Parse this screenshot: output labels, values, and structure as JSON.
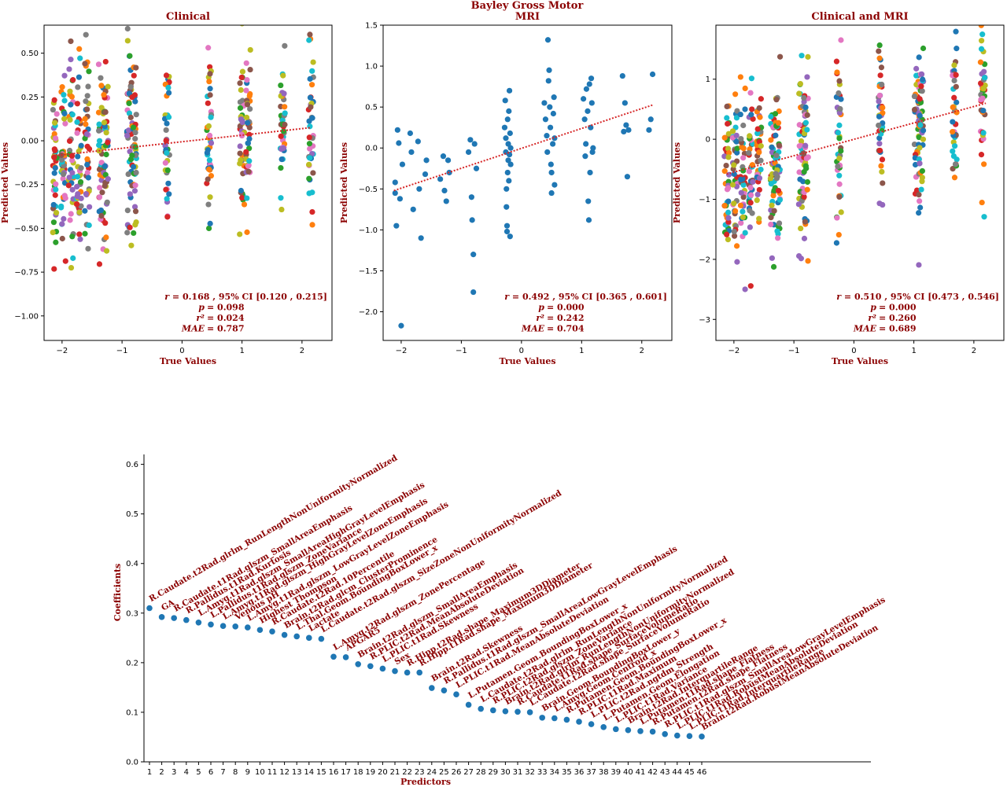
{
  "figure": {
    "suptitle_line1": "Bayley Gross Motor"
  },
  "chart_data": [
    {
      "id": "clinical",
      "type": "scatter",
      "title": "Clinical",
      "xlabel": "True Values",
      "ylabel": "Predicted Values",
      "xlim": [
        -2.3,
        2.5
      ],
      "ylim": [
        -1.14,
        0.66
      ],
      "xticks": [
        -2,
        -1,
        0,
        1,
        2
      ],
      "yticks": [
        -1.0,
        -0.75,
        -0.5,
        -0.25,
        0.0,
        0.25,
        0.5
      ],
      "ytick_labels": [
        "−1.00",
        "−0.75",
        "−0.50",
        "−0.25",
        "0.00",
        "0.25",
        "0.50"
      ],
      "xtick_labels": [
        "−2",
        "−1",
        "0",
        "1",
        "2"
      ],
      "x_groups": [
        -2.12,
        -1.98,
        -1.85,
        -1.72,
        -1.58,
        -1.35,
        -1.27,
        -0.88,
        -0.8,
        -0.25,
        0.45,
        1.0,
        1.1,
        1.68,
        2.15
      ],
      "y_center_slope": 0.04,
      "y_center_intercept": -0.02,
      "y_spread": 0.26,
      "multicolor": true,
      "fit_line": {
        "x": [
          -2.12,
          2.15
        ],
        "y": [
          -0.085,
          0.075
        ]
      },
      "stats": {
        "r_label": "r",
        "r": "= 0.168 , 95% CI [0.120 , 0.215]",
        "p_label": "p",
        "p": "= 0.098",
        "r2_label": "r²",
        "r2": "= 0.024",
        "mae_label": "MAE",
        "mae": "= 0.787"
      }
    },
    {
      "id": "mri",
      "type": "scatter",
      "title": "MRI",
      "xlabel": "True Values",
      "ylabel": "Predicted Values",
      "xlim": [
        -2.3,
        2.5
      ],
      "ylim": [
        -2.35,
        1.5
      ],
      "xticks": [
        -2,
        -1,
        0,
        1,
        2
      ],
      "yticks": [
        -2.0,
        -1.5,
        -1.0,
        -0.5,
        0.0,
        0.5,
        1.0,
        1.5
      ],
      "ytick_labels": [
        "−2.0",
        "−1.5",
        "−1.0",
        "−0.5",
        "0.0",
        "0.5",
        "1.0",
        "1.5"
      ],
      "xtick_labels": [
        "−2",
        "−1",
        "0",
        "1",
        "2"
      ],
      "points": [
        [
          -2.1,
          -0.42
        ],
        [
          -2.1,
          -0.55
        ],
        [
          -2.08,
          -0.95
        ],
        [
          -2.06,
          0.22
        ],
        [
          -2.04,
          0.06
        ],
        [
          -2.02,
          -0.62
        ],
        [
          -2.0,
          -2.17
        ],
        [
          -1.98,
          -0.2
        ],
        [
          -1.85,
          0.18
        ],
        [
          -1.83,
          -0.05
        ],
        [
          -1.8,
          -0.75
        ],
        [
          -1.72,
          0.08
        ],
        [
          -1.7,
          -0.5
        ],
        [
          -1.67,
          -1.1
        ],
        [
          -1.6,
          -0.32
        ],
        [
          -1.58,
          -0.15
        ],
        [
          -1.35,
          -0.38
        ],
        [
          -1.3,
          -0.1
        ],
        [
          -1.28,
          -0.52
        ],
        [
          -1.25,
          -0.65
        ],
        [
          -1.22,
          -0.15
        ],
        [
          -1.2,
          -0.3
        ],
        [
          -0.88,
          -0.05
        ],
        [
          -0.85,
          0.1
        ],
        [
          -0.83,
          -0.6
        ],
        [
          -0.82,
          -0.88
        ],
        [
          -0.8,
          -1.3
        ],
        [
          -0.8,
          -1.76
        ],
        [
          -0.78,
          0.05
        ],
        [
          -0.75,
          -0.25
        ],
        [
          -0.28,
          0.25
        ],
        [
          -0.27,
          0.58
        ],
        [
          -0.26,
          -0.05
        ],
        [
          -0.26,
          0.12
        ],
        [
          -0.25,
          -0.5
        ],
        [
          -0.25,
          -0.72
        ],
        [
          -0.24,
          -0.95
        ],
        [
          -0.24,
          -1.02
        ],
        [
          -0.23,
          0.35
        ],
        [
          -0.23,
          -0.3
        ],
        [
          -0.22,
          0.05
        ],
        [
          -0.22,
          -0.15
        ],
        [
          -0.21,
          0.45
        ],
        [
          -0.21,
          -0.4
        ],
        [
          -0.2,
          0.7
        ],
        [
          -0.2,
          -0.08
        ],
        [
          -0.19,
          0.18
        ],
        [
          -0.19,
          -1.08
        ],
        [
          -0.18,
          -0.2
        ],
        [
          -0.18,
          0.0
        ],
        [
          0.38,
          0.55
        ],
        [
          0.4,
          0.35
        ],
        [
          0.42,
          0.15
        ],
        [
          0.43,
          -0.05
        ],
        [
          0.44,
          1.32
        ],
        [
          0.45,
          0.82
        ],
        [
          0.46,
          0.95
        ],
        [
          0.47,
          0.5
        ],
        [
          0.48,
          0.25
        ],
        [
          0.49,
          -0.2
        ],
        [
          0.5,
          -0.55
        ],
        [
          0.5,
          -0.3
        ],
        [
          0.52,
          0.05
        ],
        [
          0.53,
          0.42
        ],
        [
          0.54,
          0.62
        ],
        [
          0.55,
          -0.45
        ],
        [
          0.55,
          0.12
        ],
        [
          1.03,
          0.6
        ],
        [
          1.05,
          0.35
        ],
        [
          1.06,
          -0.1
        ],
        [
          1.07,
          0.05
        ],
        [
          1.08,
          0.72
        ],
        [
          1.1,
          0.45
        ],
        [
          1.11,
          -0.65
        ],
        [
          1.12,
          -0.88
        ],
        [
          1.13,
          0.78
        ],
        [
          1.14,
          -0.3
        ],
        [
          1.15,
          0.25
        ],
        [
          1.16,
          0.85
        ],
        [
          1.17,
          0.55
        ],
        [
          1.18,
          -0.05
        ],
        [
          1.19,
          0.0
        ],
        [
          1.68,
          0.88
        ],
        [
          1.7,
          0.2
        ],
        [
          1.72,
          0.55
        ],
        [
          1.74,
          0.28
        ],
        [
          1.76,
          -0.35
        ],
        [
          1.78,
          0.22
        ],
        [
          2.12,
          0.22
        ],
        [
          2.15,
          0.35
        ],
        [
          2.18,
          0.9
        ]
      ],
      "fit_line": {
        "x": [
          -2.12,
          2.2
        ],
        "y": [
          -0.52,
          0.53
        ]
      },
      "stats": {
        "r_label": "r",
        "r": "= 0.492 , 95% CI [0.365 , 0.601]",
        "p_label": "p",
        "p": "= 0.000",
        "r2_label": "r²",
        "r2": "= 0.242",
        "mae_label": "MAE",
        "mae": "= 0.704"
      }
    },
    {
      "id": "clinical-mri",
      "type": "scatter",
      "title": "Clinical and MRI",
      "xlabel": "True Values",
      "ylabel": "Predicted Values",
      "xlim": [
        -2.3,
        2.5
      ],
      "ylim": [
        -3.35,
        1.9
      ],
      "xticks": [
        -2,
        -1,
        0,
        1,
        2
      ],
      "yticks": [
        -3,
        -2,
        -1,
        0,
        1
      ],
      "ytick_labels": [
        "−3",
        "−2",
        "−1",
        "0",
        "1"
      ],
      "xtick_labels": [
        "−2",
        "−1",
        "0",
        "1",
        "2"
      ],
      "x_groups": [
        -2.12,
        -1.98,
        -1.85,
        -1.72,
        -1.58,
        -1.35,
        -1.27,
        -0.88,
        -0.8,
        -0.25,
        0.45,
        1.05,
        1.12,
        1.68,
        2.15
      ],
      "y_center_slope": 0.27,
      "y_center_intercept": 0.0,
      "y_spread": 0.72,
      "multicolor": true,
      "fit_line": {
        "x": [
          -2.12,
          2.2
        ],
        "y": [
          -0.58,
          0.6
        ]
      },
      "stats": {
        "r_label": "r",
        "r": "= 0.510 , 95% CI [0.473 , 0.546]",
        "p_label": "p",
        "p": "= 0.000",
        "r2_label": "r²",
        "r2": "= 0.260",
        "mae_label": "MAE",
        "mae": "= 0.689"
      }
    },
    {
      "id": "coefficients",
      "type": "scatter",
      "xlabel": "Predictors",
      "ylabel": "Coefficients",
      "ylim": [
        0.0,
        0.62
      ],
      "yticks": [
        0.0,
        0.1,
        0.2,
        0.3,
        0.4,
        0.5,
        0.6
      ],
      "ytick_labels": [
        "0.0",
        "0.1",
        "0.2",
        "0.3",
        "0.4",
        "0.5",
        "0.6"
      ],
      "x": [
        1,
        2,
        3,
        4,
        5,
        6,
        7,
        8,
        9,
        10,
        11,
        12,
        13,
        14,
        15,
        16,
        17,
        18,
        19,
        20,
        21,
        22,
        23,
        24,
        25,
        26,
        27,
        28,
        29,
        30,
        31,
        32,
        33,
        34,
        35,
        36,
        37,
        38,
        39,
        40,
        41,
        42,
        43,
        44,
        45,
        46
      ],
      "xtick_labels": [
        "1",
        "2",
        "3",
        "4",
        "5",
        "6",
        "7",
        "8",
        "9",
        "10",
        "11",
        "12",
        "13",
        "14",
        "15",
        "16",
        "17",
        "18",
        "19",
        "20",
        "21",
        "22",
        "23",
        "24",
        "25",
        "26",
        "27",
        "28",
        "29",
        "30",
        "31",
        "32",
        "33",
        "34",
        "35",
        "36",
        "37",
        "38",
        "39",
        "40",
        "41",
        "42",
        "43",
        "44",
        "45",
        "46"
      ],
      "values": [
        0.31,
        0.292,
        0.29,
        0.286,
        0.281,
        0.277,
        0.274,
        0.273,
        0.271,
        0.266,
        0.263,
        0.256,
        0.253,
        0.25,
        0.248,
        0.212,
        0.211,
        0.197,
        0.193,
        0.188,
        0.183,
        0.18,
        0.18,
        0.149,
        0.144,
        0.136,
        0.115,
        0.107,
        0.104,
        0.102,
        0.101,
        0.1,
        0.089,
        0.088,
        0.085,
        0.081,
        0.076,
        0.07,
        0.066,
        0.064,
        0.062,
        0.061,
        0.056,
        0.053,
        0.052,
        0.051
      ],
      "labels": [
        "R.Caudate.t2Rad.glrlm_RunLengthNonUniformityNormalized",
        "GA",
        "R.Caudate.t1Rad.glszm_SmallAreaEmphasis",
        "R.Pallidus.t1Rad.Kurtosis",
        "L.Amyg.t1Rad.glszm_SmallAreaHighGrayLevelEmphasis",
        "L.Pallidus.t1Rad.glszm_ZoneVariance",
        "L.Amyg.t1Rad.glszm_HighGrayLevelZoneEmphasis",
        "Venous pH",
        "L.Amyg.t1Rad.glszm_LowGrayLevelZoneEmphasis",
        "Highest Thompson",
        "R.Caudate.t2Rad.10Percentile",
        "Brain.t2Rad.glcm_ClusterProminence",
        "L.Thal.Geom.BoundingBoxLower_x",
        "Lactate",
        "L.Caudate.t2Rad.glszm_SizeZoneNonUniformityNormalized",
        "L.Amyg.t2Rad.glszm_ZonePercentage",
        "APGAR5",
        "Brain.t2Rad.glszm_SmallAreaEmphasis",
        "R.PLIC.t2Rad.MeanAbsoluteDeviation",
        "L.PLIC.t1Rad.Skewness",
        "Sex",
        "R.Hipp.t2Rad.shape_Maximum3DDiameter",
        "R.Hipp.t1Rad.shape_Maximum3DDiameter",
        "Brain.t2Rad.Skewness",
        "R.Pallidus.t1Rad.glszm_SmallAreaLowGrayLevelEmphasis",
        "L.PLIC.t1Rad.MeanAbsoluteDeviation",
        "L.Putamen.Geom.BoundingBoxLower_x",
        "L.Caudate.t2Rad.glrlm_RunLengthNonUniformityNormalized",
        "R.PLIC.t2Rad.glszm_ZoneVariance",
        "Brain.t2Rad.glrlm_RunLengthNonUniformityNormalized",
        "R.Caudate.t1Rad.shape_SurfaceVolumeRatio",
        "L.Caudate.t2Rad.shape_SurfaceVolumeRatio",
        "Brain.Geom.BoundingBoxLower_y",
        "L.Amyg.Geom.Centroid_x",
        "R.Putamen.Geom.BoundingBoxLower_x",
        "R.PLIC.t1Rad.Maximum",
        "L.PLIC.t2Rad.ngtdm_Strength",
        "L.Putamen.Geom.Elongation",
        "L.PLIC.t1Rad.Variance",
        "Brain.t2Rad.InterquartileRange",
        "L.Putamen.t1Rad.shape_Flatness",
        "R.Putamen.t2Rad.shape_Flatness",
        "R.PLIC.t1Rad.glszm_SmallAreaLowGrayLevelEmphasis",
        "L.PLIC.t1Rad.RobustMeanAbsoluteDeviation",
        "L.PLIC.t1Rad.InterquartileRange",
        "Brain.t2Rad.RobustMeanAbsoluteDeviation"
      ]
    }
  ],
  "colors": {
    "label_text": "#8b0000",
    "point_blue": "#1f77b4",
    "fit_line": "#d62728",
    "palette": [
      "#1f77b4",
      "#ff7f0e",
      "#2ca02c",
      "#d62728",
      "#9467bd",
      "#8c564b",
      "#e377c2",
      "#7f7f7f",
      "#bcbd22",
      "#17becf"
    ]
  }
}
